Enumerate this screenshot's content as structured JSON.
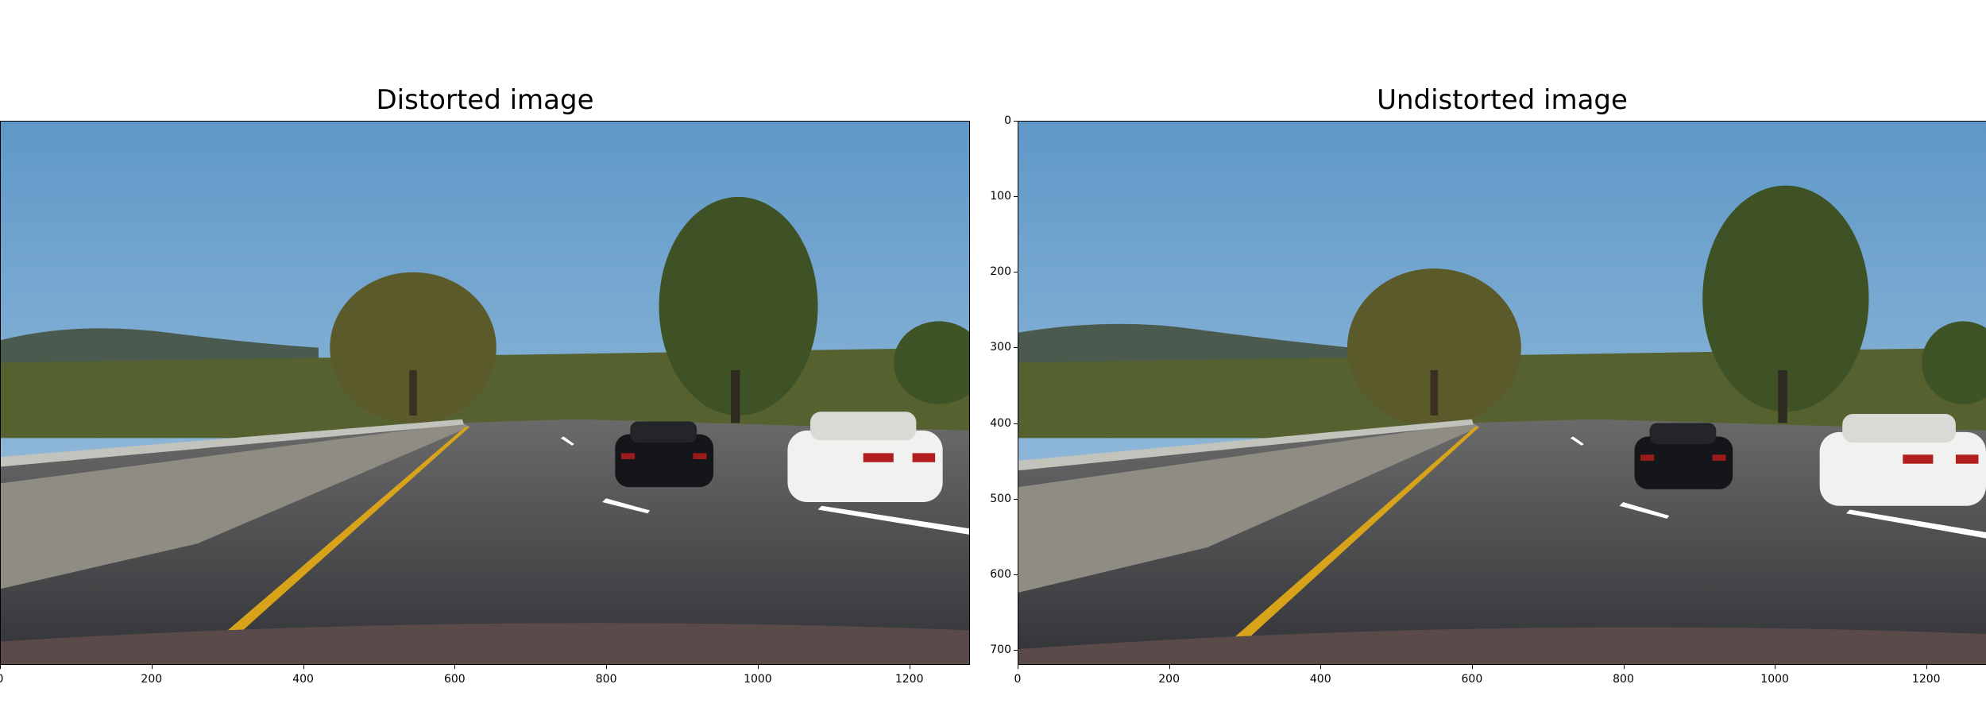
{
  "panels": {
    "left": {
      "title": "Distorted image"
    },
    "right": {
      "title": "Undistorted image"
    }
  },
  "axes": {
    "x_ticks": [
      "0",
      "200",
      "400",
      "600",
      "800",
      "1000",
      "1200"
    ],
    "y_ticks": [
      "0",
      "100",
      "200",
      "300",
      "400",
      "500",
      "600",
      "700"
    ]
  },
  "colors": {
    "sky_top": "#5f98c8",
    "sky_bottom": "#a9c9e2",
    "hills": "#4a5a4e",
    "foliage": "#4f5a2c",
    "road": "#3a3b3e",
    "barrier": "#9a968e",
    "lane_yellow": "#d8a21a",
    "car_black": "#15161a",
    "car_white": "#f1f1ef",
    "hood": "#5a4a4a"
  }
}
